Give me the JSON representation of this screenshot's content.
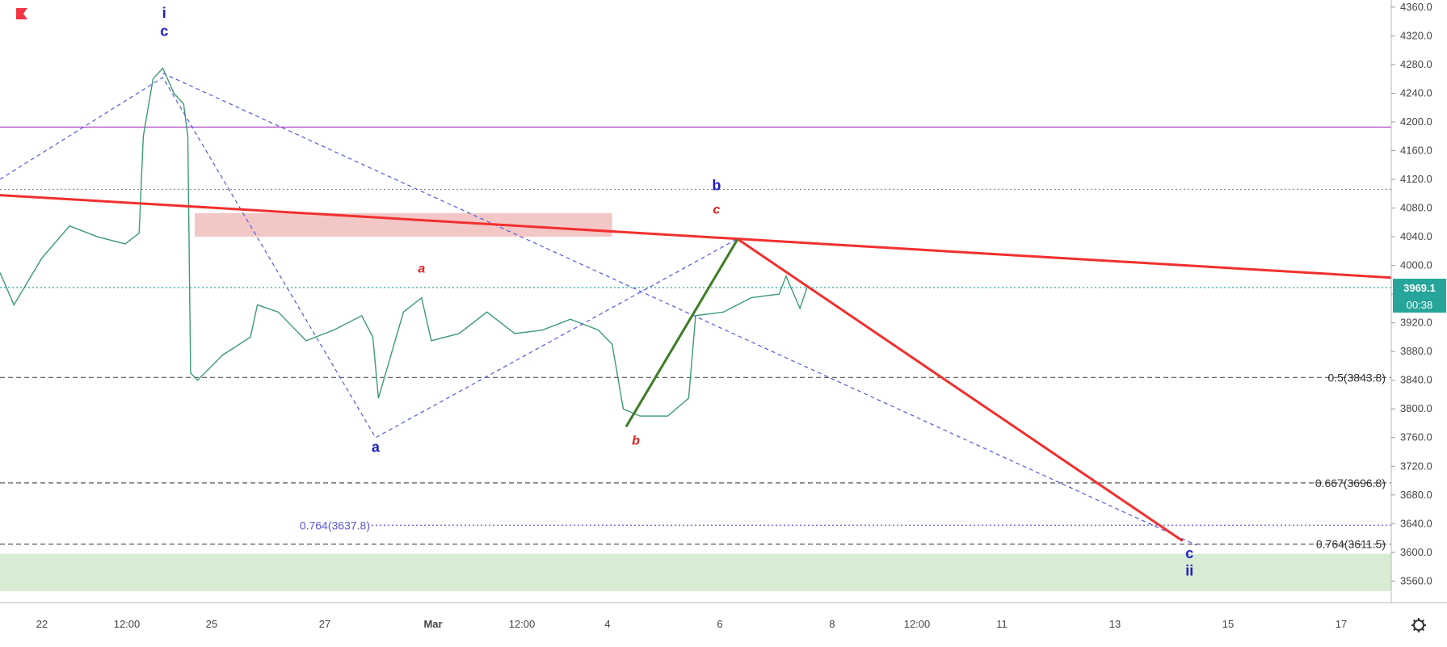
{
  "chart_data": {
    "type": "candlestick",
    "symbol_flag_color": "#f23645",
    "ylim": [
      3530,
      4370
    ],
    "y_ticks": [
      "4360.0",
      "4320.0",
      "4280.0",
      "4240.0",
      "4200.0",
      "4160.0",
      "4120.0",
      "4080.0",
      "4040.0",
      "4000.0",
      "3960.0",
      "3920.0",
      "3880.0",
      "3840.0",
      "3800.0",
      "3760.0",
      "3720.0",
      "3680.0",
      "3640.0",
      "3600.0",
      "3560.0"
    ],
    "x_ticks": [
      "22",
      "12:00",
      "25",
      "27",
      "Mar",
      "12:00",
      "4",
      "6",
      "8",
      "12:00",
      "11",
      "13",
      "15",
      "17"
    ],
    "last_price": {
      "value": 3969.1,
      "label": "3969.1",
      "countdown": "00:38",
      "color": "#26a69a"
    },
    "horizontal_levels": [
      {
        "value": 4193,
        "style": "solid",
        "color": "#9c27b0"
      },
      {
        "value": 4106,
        "style": "dotted",
        "color": "#888888"
      },
      {
        "value": 3969.1,
        "style": "dotted",
        "color": "#26a69a"
      },
      {
        "value": 3843.8,
        "style": "dashed",
        "color": "#555555",
        "label": "0.5(3843.8)"
      },
      {
        "value": 3696.8,
        "style": "dashed",
        "color": "#555555",
        "label": "0.667(3696.8)"
      },
      {
        "value": 3637.8,
        "style": "dotted",
        "color": "#5b5bd6",
        "label": "0.764(3637.8)"
      },
      {
        "value": 3611.5,
        "style": "dashed",
        "color": "#555555",
        "label": "0.764(3611.5)"
      }
    ],
    "zones": [
      {
        "name": "resistance-zone",
        "x_from": 0.14,
        "x_to": 0.44,
        "y_from": 4040,
        "y_to": 4073,
        "color": "#f4c7c7"
      },
      {
        "name": "support-zone",
        "x_from": 0.0,
        "x_to": 1.0,
        "y_from": 3546,
        "y_to": 3598,
        "color": "#d8ebd3"
      }
    ],
    "trendline": {
      "color": "#f0302e",
      "from": [
        0.0,
        4098
      ],
      "to": [
        1.0,
        3983
      ]
    },
    "projection_line": {
      "color": "#f0302e",
      "points": [
        [
          0.53,
          4037
        ],
        [
          0.85,
          3616
        ]
      ]
    },
    "green_leg": {
      "color": "#3b7d23",
      "points": [
        [
          0.45,
          3775
        ],
        [
          0.53,
          4036
        ]
      ]
    },
    "wave_paths": [
      {
        "name": "blue-wave-path",
        "color": "#4f5bdc",
        "points": [
          [
            0.0,
            4120
          ],
          [
            0.117,
            4262
          ],
          [
            0.27,
            3760
          ],
          [
            0.53,
            4037
          ]
        ]
      },
      {
        "name": "blue-wave-projection",
        "color": "#4f5bdc",
        "points": [
          [
            0.117,
            4268
          ],
          [
            0.86,
            3610
          ]
        ]
      }
    ],
    "wave_labels": [
      {
        "text": "i",
        "color": "#1d1dc8",
        "italic": false,
        "pos": [
          0.118,
          4345
        ]
      },
      {
        "text": "c",
        "color": "#1d1dc8",
        "italic": false,
        "pos": [
          0.118,
          4320
        ]
      },
      {
        "text": "a",
        "color": "#1d1dc8",
        "italic": false,
        "pos": [
          0.27,
          3740
        ]
      },
      {
        "text": "a",
        "color": "#e02020",
        "italic": true,
        "pos": [
          0.303,
          3990
        ]
      },
      {
        "text": "b",
        "color": "#e02020",
        "italic": true,
        "pos": [
          0.457,
          3750
        ]
      },
      {
        "text": "b",
        "color": "#1d1dc8",
        "italic": false,
        "pos": [
          0.515,
          4105
        ]
      },
      {
        "text": "c",
        "color": "#e02020",
        "italic": true,
        "pos": [
          0.515,
          4072
        ]
      },
      {
        "text": "c",
        "color": "#1d1dc8",
        "italic": false,
        "pos": [
          0.855,
          3592
        ]
      },
      {
        "text": "ii",
        "color": "#1d1dc8",
        "italic": false,
        "pos": [
          0.855,
          3568
        ]
      }
    ],
    "price_path": [
      [
        0.0,
        3990
      ],
      [
        0.01,
        3945
      ],
      [
        0.03,
        4010
      ],
      [
        0.05,
        4055
      ],
      [
        0.07,
        4040
      ],
      [
        0.09,
        4030
      ],
      [
        0.1,
        4045
      ],
      [
        0.103,
        4180
      ],
      [
        0.11,
        4260
      ],
      [
        0.117,
        4275
      ],
      [
        0.125,
        4240
      ],
      [
        0.132,
        4225
      ],
      [
        0.135,
        4180
      ],
      [
        0.137,
        3850
      ],
      [
        0.142,
        3840
      ],
      [
        0.16,
        3875
      ],
      [
        0.18,
        3900
      ],
      [
        0.185,
        3945
      ],
      [
        0.2,
        3935
      ],
      [
        0.22,
        3895
      ],
      [
        0.24,
        3910
      ],
      [
        0.26,
        3930
      ],
      [
        0.268,
        3900
      ],
      [
        0.272,
        3815
      ],
      [
        0.29,
        3935
      ],
      [
        0.303,
        3955
      ],
      [
        0.31,
        3895
      ],
      [
        0.33,
        3905
      ],
      [
        0.35,
        3935
      ],
      [
        0.37,
        3905
      ],
      [
        0.39,
        3910
      ],
      [
        0.41,
        3925
      ],
      [
        0.43,
        3910
      ],
      [
        0.44,
        3890
      ],
      [
        0.448,
        3800
      ],
      [
        0.46,
        3790
      ],
      [
        0.48,
        3790
      ],
      [
        0.495,
        3815
      ],
      [
        0.5,
        3930
      ],
      [
        0.52,
        3935
      ],
      [
        0.54,
        3955
      ],
      [
        0.56,
        3960
      ],
      [
        0.565,
        3985
      ],
      [
        0.575,
        3940
      ],
      [
        0.58,
        3969
      ]
    ]
  },
  "toolbar": {
    "settings_icon": "gear-icon"
  }
}
